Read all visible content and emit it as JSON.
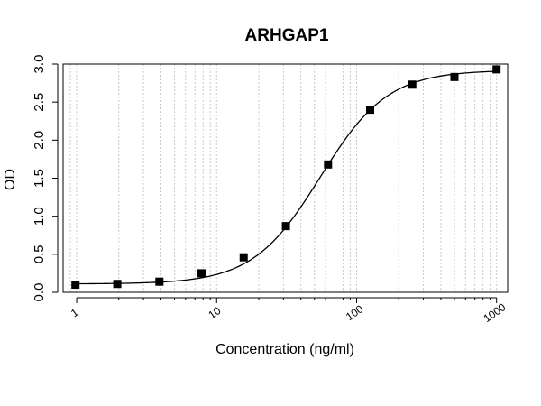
{
  "chart_data": {
    "type": "scatter",
    "title": "ARHGAP1",
    "xlabel": "Concentration (ng/ml)",
    "ylabel": "OD",
    "x_scale": "log10",
    "xlim": [
      0.8,
      1200
    ],
    "ylim": [
      0,
      3.0
    ],
    "grid": true,
    "x_tick_labels": [
      "1",
      "10",
      "100",
      "1000"
    ],
    "x_tick_values": [
      1,
      10,
      100,
      1000
    ],
    "y_tick_labels": [
      "0.0",
      "0.5",
      "1.0",
      "1.5",
      "2.0",
      "2.5",
      "3.0"
    ],
    "y_tick_values": [
      0,
      0.5,
      1.0,
      1.5,
      2.0,
      2.5,
      3.0
    ],
    "series": [
      {
        "x": [
          0.98,
          1.95,
          3.9,
          7.8,
          15.6,
          31.25,
          62.5,
          125,
          250,
          500,
          1000
        ],
        "y": [
          0.1,
          0.11,
          0.14,
          0.25,
          0.46,
          0.87,
          1.68,
          2.4,
          2.73,
          2.83,
          2.93
        ],
        "marker": "square",
        "color": "#000000"
      }
    ],
    "fit_curve": {
      "type": "4PL",
      "bottom": 0.11,
      "top": 2.92,
      "ec50": 55,
      "hill": 1.8,
      "color": "#000000"
    }
  }
}
